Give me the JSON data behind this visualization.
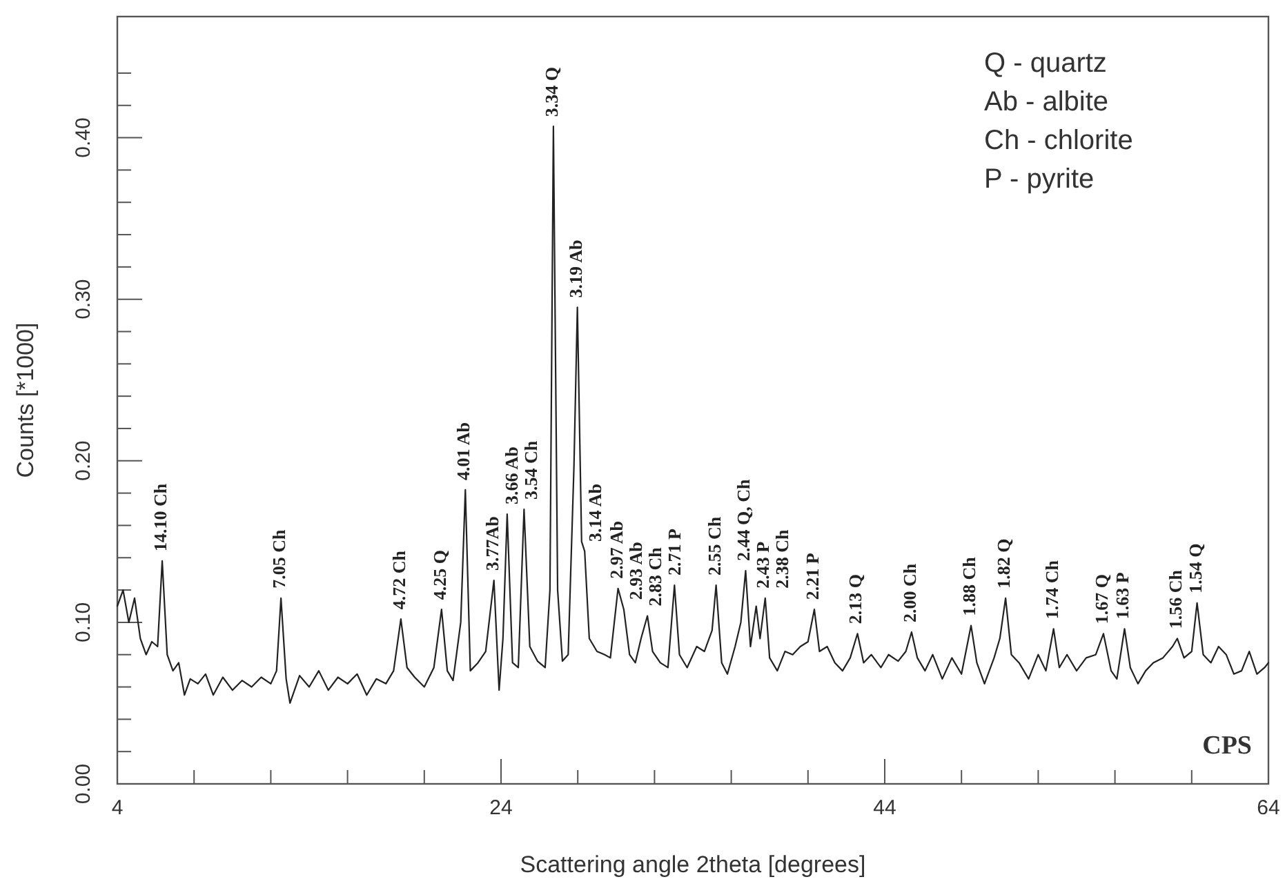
{
  "chart_data": {
    "type": "line",
    "xlabel": "Scattering angle 2theta [degrees]",
    "ylabel": "Counts [*1000]",
    "color": "#222222",
    "xlim": [
      4,
      64
    ],
    "ylim": [
      0,
      0.475
    ],
    "xticks": [
      4,
      {
        "value": 8,
        "label": null
      },
      {
        "value": 12,
        "label": null
      },
      {
        "value": 16,
        "label": null
      },
      {
        "value": 20,
        "label": null
      },
      24,
      {
        "value": 28,
        "label": null
      },
      {
        "value": 32,
        "label": null
      },
      {
        "value": 36,
        "label": null
      },
      {
        "value": 40,
        "label": null
      },
      44,
      {
        "value": 48,
        "label": null
      },
      {
        "value": 52,
        "label": null
      },
      {
        "value": 56,
        "label": null
      },
      {
        "value": 60,
        "label": null
      },
      64
    ],
    "yticks": [
      {
        "value": 0,
        "label": "0.00"
      },
      {
        "value": 0.02,
        "label": null
      },
      {
        "value": 0.04,
        "label": null
      },
      {
        "value": 0.06,
        "label": null
      },
      {
        "value": 0.08,
        "label": null
      },
      {
        "value": 0.1,
        "label": "0.10"
      },
      {
        "value": 0.12,
        "label": null
      },
      {
        "value": 0.14,
        "label": null
      },
      {
        "value": 0.16,
        "label": null
      },
      {
        "value": 0.18,
        "label": null
      },
      {
        "value": 0.2,
        "label": "0.20"
      },
      {
        "value": 0.22,
        "label": null
      },
      {
        "value": 0.24,
        "label": null
      },
      {
        "value": 0.26,
        "label": null
      },
      {
        "value": 0.28,
        "label": null
      },
      {
        "value": 0.3,
        "label": "0.30"
      },
      {
        "value": 0.32,
        "label": null
      },
      {
        "value": 0.34,
        "label": null
      },
      {
        "value": 0.36,
        "label": null
      },
      {
        "value": 0.38,
        "label": null
      },
      {
        "value": 0.4,
        "label": "0.40"
      },
      {
        "value": 0.42,
        "label": null
      },
      {
        "value": 0.44,
        "label": null
      }
    ],
    "grid": false,
    "marker": "none",
    "line_style": "solid",
    "x": [
      4.0,
      4.3,
      4.6,
      4.9,
      5.2,
      5.5,
      5.8,
      6.1,
      6.34,
      6.6,
      6.9,
      7.2,
      7.5,
      7.8,
      8.2,
      8.6,
      9.0,
      9.5,
      10.0,
      10.5,
      11.0,
      11.5,
      12.0,
      12.3,
      12.53,
      12.8,
      13.0,
      13.5,
      14.0,
      14.5,
      15.0,
      15.5,
      16.0,
      16.5,
      17.0,
      17.5,
      18.0,
      18.4,
      18.78,
      19.1,
      19.5,
      20.0,
      20.5,
      20.9,
      21.2,
      21.5,
      21.9,
      22.14,
      22.4,
      22.8,
      23.2,
      23.63,
      23.9,
      24.1,
      24.32,
      24.6,
      24.9,
      25.2,
      25.5,
      25.9,
      26.3,
      26.55,
      26.73,
      26.95,
      27.2,
      27.5,
      27.8,
      27.98,
      28.2,
      28.36,
      28.6,
      29.0,
      29.4,
      29.7,
      30.1,
      30.4,
      30.7,
      31.0,
      31.3,
      31.63,
      31.9,
      32.3,
      32.7,
      33.04,
      33.3,
      33.7,
      34.2,
      34.6,
      35.0,
      35.21,
      35.5,
      35.8,
      36.2,
      36.5,
      36.75,
      37.0,
      37.3,
      37.5,
      37.77,
      38.0,
      38.4,
      38.8,
      39.2,
      39.6,
      40.0,
      40.33,
      40.6,
      41.0,
      41.4,
      41.8,
      42.2,
      42.58,
      42.9,
      43.3,
      43.8,
      44.2,
      44.7,
      45.1,
      45.4,
      45.7,
      46.1,
      46.5,
      47.0,
      47.5,
      48.0,
      48.5,
      48.8,
      49.2,
      49.7,
      50.0,
      50.3,
      50.6,
      51.0,
      51.5,
      52.0,
      52.4,
      52.8,
      53.1,
      53.5,
      54.0,
      54.5,
      55.0,
      55.4,
      55.8,
      56.1,
      56.5,
      56.8,
      57.2,
      57.6,
      58.0,
      58.5,
      59.0,
      59.25,
      59.6,
      60.0,
      60.28,
      60.6,
      61.0,
      61.4,
      61.8,
      62.2,
      62.6,
      63.0,
      63.4,
      63.8,
      64.0
    ],
    "values": [
      0.11,
      0.12,
      0.1,
      0.115,
      0.09,
      0.08,
      0.088,
      0.085,
      0.138,
      0.08,
      0.07,
      0.075,
      0.055,
      0.065,
      0.062,
      0.068,
      0.055,
      0.066,
      0.058,
      0.064,
      0.06,
      0.066,
      0.062,
      0.07,
      0.115,
      0.065,
      0.05,
      0.067,
      0.06,
      0.07,
      0.058,
      0.066,
      0.062,
      0.068,
      0.055,
      0.065,
      0.062,
      0.07,
      0.102,
      0.072,
      0.066,
      0.06,
      0.072,
      0.108,
      0.07,
      0.064,
      0.1,
      0.182,
      0.07,
      0.075,
      0.082,
      0.126,
      0.058,
      0.09,
      0.167,
      0.075,
      0.072,
      0.17,
      0.085,
      0.076,
      0.072,
      0.12,
      0.407,
      0.12,
      0.076,
      0.08,
      0.196,
      0.295,
      0.15,
      0.144,
      0.09,
      0.082,
      0.08,
      0.078,
      0.121,
      0.108,
      0.08,
      0.075,
      0.09,
      0.104,
      0.082,
      0.075,
      0.072,
      0.123,
      0.08,
      0.072,
      0.085,
      0.082,
      0.095,
      0.123,
      0.075,
      0.068,
      0.085,
      0.1,
      0.132,
      0.085,
      0.11,
      0.09,
      0.115,
      0.078,
      0.07,
      0.082,
      0.08,
      0.085,
      0.088,
      0.108,
      0.082,
      0.085,
      0.075,
      0.07,
      0.078,
      0.093,
      0.075,
      0.08,
      0.072,
      0.08,
      0.076,
      0.082,
      0.094,
      0.078,
      0.07,
      0.08,
      0.065,
      0.078,
      0.068,
      0.098,
      0.075,
      0.062,
      0.078,
      0.09,
      0.115,
      0.08,
      0.075,
      0.065,
      0.08,
      0.07,
      0.096,
      0.072,
      0.08,
      0.07,
      0.078,
      0.08,
      0.093,
      0.07,
      0.065,
      0.096,
      0.072,
      0.062,
      0.07,
      0.075,
      0.078,
      0.085,
      0.09,
      0.078,
      0.082,
      0.112,
      0.08,
      0.075,
      0.085,
      0.08,
      0.068,
      0.07,
      0.082,
      0.068,
      0.072,
      0.075
    ],
    "annotations": [
      {
        "text": "14.10 Ch",
        "x": 6.34,
        "y": 0.138
      },
      {
        "text": "7.05 Ch",
        "x": 12.53,
        "y": 0.115
      },
      {
        "text": "4.72 Ch",
        "x": 18.78,
        "y": 0.102
      },
      {
        "text": "4.25 Q",
        "x": 20.9,
        "y": 0.108
      },
      {
        "text": "4.01 Ab",
        "x": 22.14,
        "y": 0.182
      },
      {
        "text": "3.77Ab",
        "x": 23.63,
        "y": 0.126
      },
      {
        "text": "3.66 Ab",
        "x": 24.32,
        "y": 0.167
      },
      {
        "text": "3.54 Ch",
        "x": 25.2,
        "y": 0.17
      },
      {
        "text": "3.34 Q",
        "x": 26.73,
        "y": 0.407
      },
      {
        "text": "3.19 Ab",
        "x": 27.98,
        "y": 0.295
      },
      {
        "text": "3.14 Ab",
        "x": 28.36,
        "y": 0.144
      },
      {
        "text": "2.97 Ab",
        "x": 30.1,
        "y": 0.121
      },
      {
        "text": "2.93 Ab",
        "x": 30.4,
        "y": 0.108
      },
      {
        "text": "2.83 Ch",
        "x": 31.63,
        "y": 0.104
      },
      {
        "text": "2.71 P",
        "x": 33.04,
        "y": 0.123
      },
      {
        "text": "2.55 Ch",
        "x": 35.21,
        "y": 0.123
      },
      {
        "text": "2.44 Q, Ch",
        "x": 36.75,
        "y": 0.132
      },
      {
        "text": "2.43 P",
        "x": 37.3,
        "y": 0.11
      },
      {
        "text": "2.38 Ch",
        "x": 37.77,
        "y": 0.115
      },
      {
        "text": "2.21 P",
        "x": 40.33,
        "y": 0.108
      },
      {
        "text": "2.13 Q",
        "x": 42.58,
        "y": 0.093
      },
      {
        "text": "2.00 Ch",
        "x": 45.4,
        "y": 0.094
      },
      {
        "text": "1.88 Ch",
        "x": 48.5,
        "y": 0.098
      },
      {
        "text": "1.82 Q",
        "x": 50.3,
        "y": 0.115
      },
      {
        "text": "1.74 Ch",
        "x": 52.8,
        "y": 0.096
      },
      {
        "text": "1.67 Q",
        "x": 55.4,
        "y": 0.093
      },
      {
        "text": "1.63 P",
        "x": 56.5,
        "y": 0.096
      },
      {
        "text": "1.56 Ch",
        "x": 59.25,
        "y": 0.09
      },
      {
        "text": "1.54 Q",
        "x": 60.28,
        "y": 0.112
      },
      "Q - quartz",
      "Ab - albite",
      "Ch - chlorite",
      "P - pyrite",
      "CPS"
    ]
  }
}
